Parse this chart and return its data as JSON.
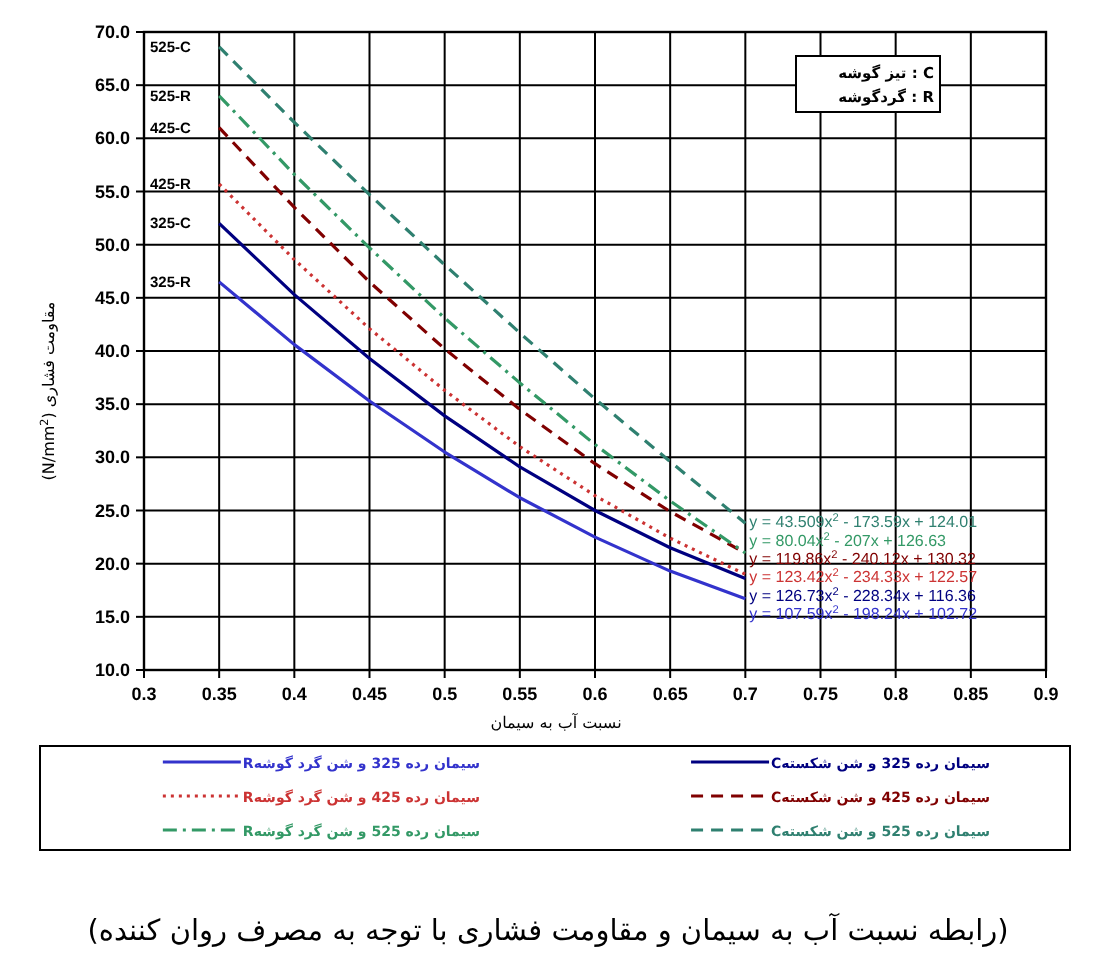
{
  "chart_data": {
    "type": "line",
    "title": "(رابطه نسبت آب به سیمان و مقاومت فشاری با توجه به مصرف روان کننده)",
    "xlabel": "نسبت آب به سیمان",
    "ylabel": "مقاومت فشاری (N/mm$^{2}$)",
    "x": [
      0.35,
      0.4,
      0.45,
      0.5,
      0.55,
      0.6,
      0.65,
      0.7
    ],
    "series": [
      {
        "name": "سیمان رده 325 و شن گرد گوشهR",
        "color": "#3333cc",
        "line_style": "solid",
        "values": [
          46.5,
          40.6,
          35.3,
          30.5,
          26.2,
          22.5,
          19.3,
          16.7
        ]
      },
      {
        "name": "سیمان رده 325 و شن شکستهC",
        "color": "#000080",
        "line_style": "solid",
        "values": [
          52.0,
          45.3,
          39.3,
          33.9,
          29.1,
          25.0,
          21.5,
          18.6
        ]
      },
      {
        "name": "سیمان رده 425 و شن گرد گوشهR",
        "color": "#cc3333",
        "line_style": "dotted",
        "values": [
          55.7,
          48.6,
          42.1,
          36.3,
          31.0,
          26.4,
          22.4,
          19.0
        ]
      },
      {
        "name": "سیمان رده 425 و شن شکستهC",
        "color": "#800000",
        "line_style": "dashed",
        "values": [
          61.0,
          53.5,
          46.5,
          40.2,
          34.5,
          29.4,
          24.9,
          21.0
        ]
      },
      {
        "name": "سیمان رده 525 و شن گرد گوشهR",
        "color": "#339966",
        "line_style": "dashdotted",
        "values": [
          64.0,
          56.6,
          49.7,
          43.1,
          37.0,
          31.2,
          25.9,
          21.0
        ]
      },
      {
        "name": "سیمان رده 525 و شن شکستهC",
        "color": "#2f8070",
        "line_style": "dashed",
        "values": [
          68.6,
          61.5,
          54.7,
          48.1,
          41.7,
          35.5,
          29.6,
          23.8
        ]
      }
    ],
    "xlim": [
      0.3,
      0.9
    ],
    "xticks": [
      0.3,
      0.35,
      0.4,
      0.45,
      0.5,
      0.55,
      0.6,
      0.65,
      0.7,
      0.75,
      0.8,
      0.85,
      0.9
    ],
    "ylim": [
      10,
      70
    ],
    "yticks": [
      {
        "value": 10,
        "label": "10.0"
      },
      {
        "value": 15,
        "label": "15.0"
      },
      {
        "value": 20,
        "label": "20.0"
      },
      {
        "value": 25,
        "label": "25.0"
      },
      {
        "value": 30,
        "label": "30.0"
      },
      {
        "value": 35,
        "label": "35.0"
      },
      {
        "value": 40,
        "label": "40.0"
      },
      {
        "value": 45,
        "label": "45.0"
      },
      {
        "value": 50,
        "label": "50.0"
      },
      {
        "value": 55,
        "label": "55.0"
      },
      {
        "value": 60,
        "label": "60.0"
      },
      {
        "value": 65,
        "label": "65.0"
      },
      {
        "value": 70,
        "label": "70.0"
      }
    ],
    "grid": true,
    "legend": "bottom",
    "annotations": [
      "C : تیز گوشه",
      "R : گردگوشه",
      "525-C",
      "525-R",
      "425-C",
      "425-R",
      "325-C",
      "325-R",
      "y = 43.509x$^{2}$ - 173.59x + 124.01",
      "y = 80.04x$^{2}$ - 207x + 126.63",
      "y = 119.86x$^{2}$ - 240.12x + 130.32",
      "y = 123.42x$^{2}$ - 234.33x + 122.57",
      "y = 126.73x$^{2}$ - 228.34x + 116.36",
      "y = 107.59x$^{2}$ - 198.24x + 102.72"
    ]
  }
}
